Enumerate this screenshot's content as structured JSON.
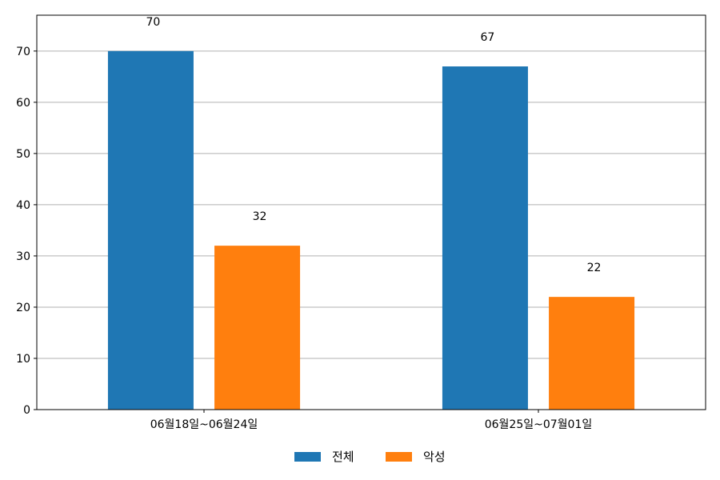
{
  "chart_data": {
    "type": "bar",
    "categories": [
      "06월18일~06월24일",
      "06월25일~07월01일"
    ],
    "series": [
      {
        "name": "전체",
        "values": [
          70,
          67
        ],
        "color": "#1f77b4"
      },
      {
        "name": "악성",
        "values": [
          32,
          22
        ],
        "color": "#ff7f0e"
      }
    ],
    "yticks": [
      0,
      10,
      20,
      30,
      40,
      50,
      60,
      70
    ],
    "ylim": [
      0,
      77
    ],
    "grid": true,
    "legend_position": "bottom-center"
  }
}
